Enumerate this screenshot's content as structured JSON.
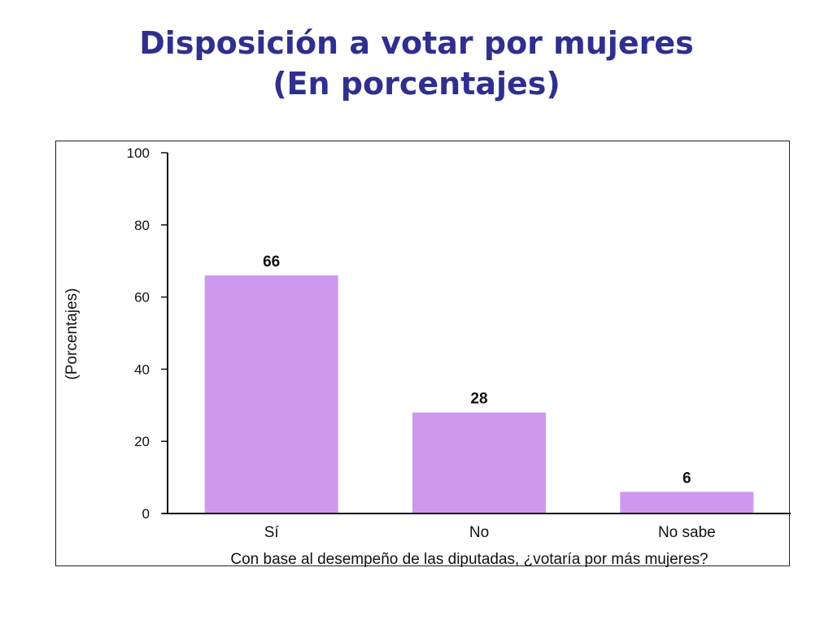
{
  "chart_data": {
    "type": "bar",
    "title": "Disposición a votar por mujeres",
    "subtitle": "(En porcentajes)",
    "categories": [
      "Sí",
      "No",
      "No sabe"
    ],
    "values": [
      66,
      28,
      6
    ],
    "data_labels": [
      "66",
      "28",
      "6"
    ],
    "xlabel": "Con base al desempeño de las diputadas, ¿votaría por más mujeres?",
    "ylabel": "(Porcentajes)",
    "ylim": [
      0,
      100
    ],
    "yticks": [
      0,
      20,
      40,
      60,
      80,
      100
    ],
    "ytick_labels": [
      "0",
      "20",
      "40",
      "60",
      "80",
      "100"
    ],
    "grid": false,
    "legend": "none",
    "bar_color": "#cf98f0"
  }
}
